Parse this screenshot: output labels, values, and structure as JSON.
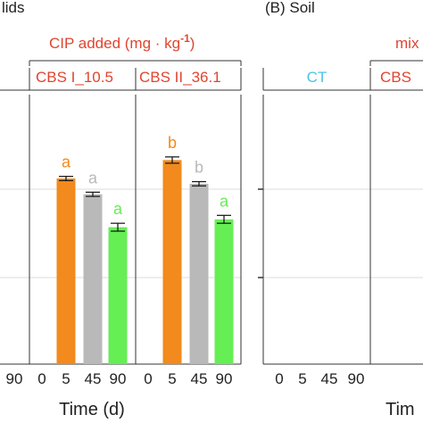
{
  "colors": {
    "orange": "#f28a1e",
    "gray": "#b9b9b9",
    "green": "#66ee55",
    "red_text": "#e0452f",
    "cyan_text": "#4cc3e6",
    "axis": "#333333",
    "grid": "#dddddd"
  },
  "panel_a": {
    "title_fragment": "lids",
    "header": "CIP added (mg · kg",
    "header_sup": "-1",
    "header_close": ")",
    "groups": [
      "CBS I_10.5",
      "CBS II_36.1"
    ],
    "xlabel": "Time (d)",
    "first_tick": "90"
  },
  "panel_b": {
    "title": "(B) Soil",
    "header_fragment": "mix",
    "groups": [
      "CT",
      "CBS"
    ],
    "xlabel": "Tim",
    "ticks": [
      "0",
      "5",
      "45",
      "90"
    ]
  },
  "chart_data": {
    "type": "bar",
    "categories": [
      "0",
      "5",
      "45",
      "90"
    ],
    "groups": [
      {
        "name": "CBS I_10.5",
        "values": [
          0,
          70.5,
          64.5,
          52
        ],
        "errors": [
          0,
          0.8,
          0.8,
          1.5
        ],
        "letters": [
          "",
          "a",
          "a",
          "a"
        ],
        "colors": [
          "none",
          "orange",
          "gray",
          "green"
        ]
      },
      {
        "name": "CBS II_36.1",
        "values": [
          0,
          77.5,
          68.5,
          55
        ],
        "errors": [
          0,
          1.2,
          0.8,
          1.5
        ],
        "letters": [
          "",
          "b",
          "b",
          "a"
        ],
        "colors": [
          "none",
          "orange",
          "gray",
          "green"
        ]
      }
    ],
    "xlabel": "Time (d)",
    "grid": true,
    "ylim": [
      0,
      100
    ]
  }
}
